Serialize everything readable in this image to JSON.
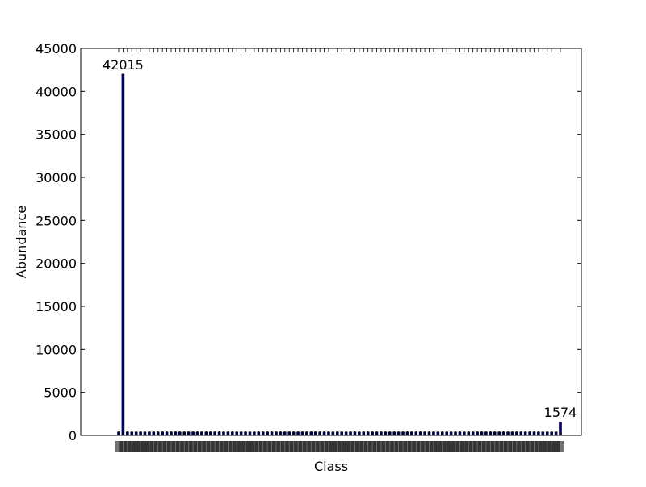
{
  "chart_data": {
    "type": "bar",
    "title": "",
    "xlabel": "Class",
    "ylabel": "Abundance",
    "ylim": [
      0,
      45000
    ],
    "yticks": [
      0,
      5000,
      10000,
      15000,
      20000,
      25000,
      30000,
      35000,
      40000,
      45000
    ],
    "category_count": 102,
    "bars": [
      {
        "index": 1,
        "value": 42015,
        "label": "42015"
      },
      {
        "index": 101,
        "value": 1574,
        "label": "1574"
      }
    ],
    "baseline_value": 400,
    "x_tick_labels_note": "overlapping unreadable numeric class labels",
    "grid": false,
    "legend": "none",
    "bar_color": "#000080",
    "edge_color": "#000000"
  }
}
